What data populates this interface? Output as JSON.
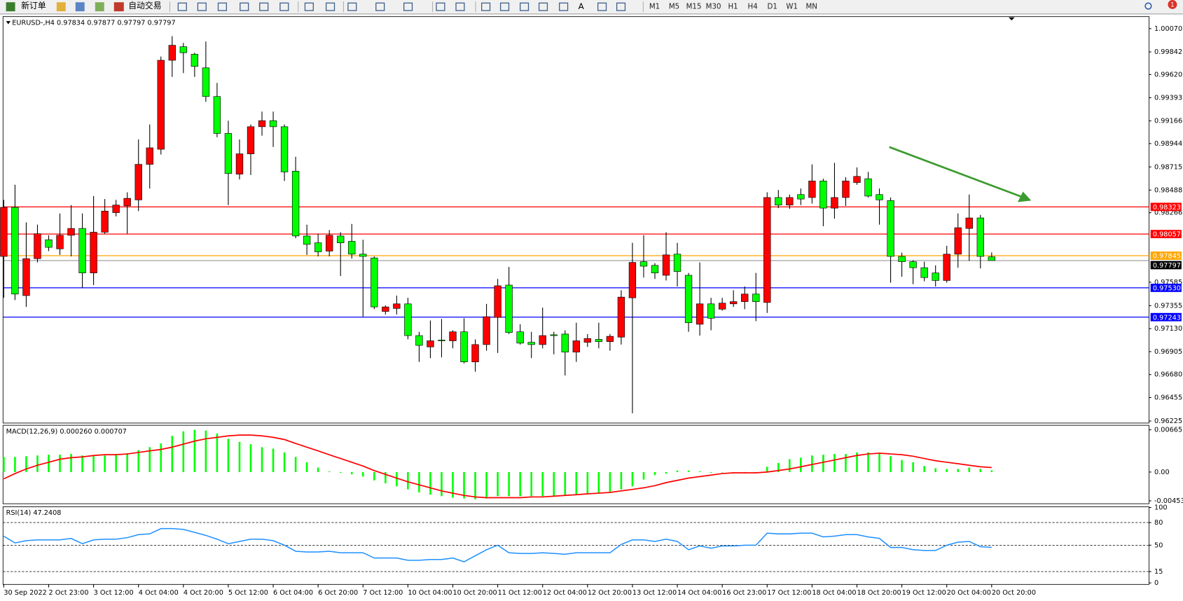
{
  "toolbar": {
    "new_order": "新订单",
    "auto_trading": "自动交易",
    "text_tool": "A",
    "timeframes": [
      "M1",
      "M5",
      "M15",
      "M30",
      "H1",
      "H4",
      "D1",
      "W1",
      "MN"
    ],
    "notification": 1
  },
  "chart_data": [
    {
      "type": "candlestick",
      "title": "EURUSD-,H4 0.97834 0.97877 0.97797 0.97797",
      "up_color": "#ff0000",
      "down_color": "#00ff00",
      "wick_color": "#000000",
      "categories": [
        "30 Sep 2022",
        null,
        null,
        null,
        "2 Oct 23:00",
        null,
        null,
        null,
        "3 Oct 12:00",
        null,
        null,
        null,
        "4 Oct 04:00",
        null,
        null,
        null,
        "4 Oct 20:00",
        null,
        null,
        null,
        "5 Oct 12:00",
        null,
        null,
        null,
        "6 Oct 04:00",
        null,
        null,
        null,
        "6 Oct 20:00",
        null,
        null,
        null,
        "7 Oct 12:00",
        null,
        null,
        null,
        "10 Oct 04:00",
        null,
        null,
        null,
        "10 Oct 20:00",
        null,
        null,
        null,
        "11 Oct 12:00",
        null,
        null,
        null,
        "12 Oct 04:00",
        null,
        null,
        null,
        "12 Oct 20:00",
        null,
        null,
        null,
        "13 Oct 12:00",
        null,
        null,
        null,
        "14 Oct 04:00",
        null,
        null,
        null,
        "16 Oct 23:00",
        null,
        null,
        null,
        "17 Oct 12:00",
        null,
        null,
        null,
        "18 Oct 04:00",
        null,
        null,
        null,
        "18 Oct 20:00",
        null,
        null,
        null,
        "19 Oct 12:00",
        null,
        null,
        null,
        "20 Oct 04:00",
        null,
        null,
        null,
        "20 Oct 20:00"
      ],
      "open": [
        0.97838,
        0.98319,
        0.97454,
        0.97816,
        0.98001,
        0.97912,
        0.98045,
        0.98112,
        0.97676,
        0.98075,
        0.98267,
        0.98333,
        0.98392,
        0.9874,
        0.98888,
        0.9976,
        0.99893,
        0.99819,
        0.99686,
        0.99405,
        0.99043,
        0.98644,
        0.98843,
        0.99109,
        0.99168,
        0.99109,
        0.98673,
        0.98038,
        0.97971,
        0.9789,
        0.98038,
        0.97986,
        0.9786,
        0.97823,
        0.97299,
        0.97328,
        0.97373,
        0.97062,
        0.96951,
        0.97018,
        0.97011,
        0.97099,
        0.96804,
        0.96974,
        0.9724,
        0.97557,
        0.97099,
        0.96996,
        0.96974,
        0.9707,
        0.97077,
        0.969,
        0.96996,
        0.97025,
        0.97003,
        0.97047,
        0.97432,
        0.97786,
        0.9775,
        0.97653,
        0.9786,
        0.97653,
        0.97173,
        0.97373,
        0.97321,
        0.97373,
        0.97395,
        0.97469,
        0.97387,
        0.98415,
        0.98341,
        0.98444,
        0.98415,
        0.98577,
        0.98311,
        0.98415,
        0.98562,
        0.98599,
        0.98444,
        0.98385,
        0.97838,
        0.97786,
        0.97727,
        0.97676,
        0.97602,
        0.9786,
        0.98112,
        0.98215,
        0.97834
      ],
      "high": [
        0.98392,
        0.9854,
        0.98171,
        0.98149,
        0.98045,
        0.98259,
        0.98341,
        0.98259,
        0.98429,
        0.984,
        0.98392,
        0.98466,
        0.98984,
        0.99131,
        0.99797,
        0.99996,
        0.9993,
        0.99834,
        0.99944,
        0.99538,
        0.99168,
        0.98984,
        0.99131,
        0.99257,
        0.99257,
        0.99131,
        0.98814,
        0.98149,
        0.9806,
        0.98097,
        0.98075,
        0.98156,
        0.98001,
        0.97838,
        0.97358,
        0.97454,
        0.97432,
        0.97099,
        0.9721,
        0.97225,
        0.97114,
        0.97232,
        0.97025,
        0.97373,
        0.97617,
        0.97735,
        0.97173,
        0.97099,
        0.97336,
        0.97099,
        0.97114,
        0.97188,
        0.97077,
        0.97188,
        0.97077,
        0.97506,
        0.97971,
        0.98045,
        0.97772,
        0.98075,
        0.97971,
        0.97676,
        0.97779,
        0.97432,
        0.97432,
        0.97506,
        0.97543,
        0.97676,
        0.98466,
        0.98489,
        0.98444,
        0.98503,
        0.9874,
        0.98599,
        0.98755,
        0.98614,
        0.9871,
        0.98666,
        0.98503,
        0.98415,
        0.97875,
        0.97801,
        0.97786,
        0.9775,
        0.97942,
        0.98259,
        0.98444,
        0.98245,
        0.97877
      ],
      "low": [
        0.97432,
        0.9741,
        0.97343,
        0.97779,
        0.9789,
        0.97853,
        0.97838,
        0.97528,
        0.97557,
        0.9806,
        0.9823,
        0.9806,
        0.98282,
        0.98503,
        0.98836,
        0.99597,
        0.99634,
        0.99597,
        0.99353,
        0.99006,
        0.98341,
        0.98592,
        0.98636,
        0.99021,
        0.9891,
        0.98577,
        0.98016,
        0.97853,
        0.97838,
        0.97838,
        0.97646,
        0.97816,
        0.97247,
        0.97321,
        0.97269,
        0.97269,
        0.97025,
        0.96804,
        0.96841,
        0.96848,
        0.96937,
        0.96789,
        0.96708,
        0.96914,
        0.96892,
        0.97077,
        0.96974,
        0.96841,
        0.96937,
        0.96878,
        0.96671,
        0.96804,
        0.96951,
        0.96937,
        0.96914,
        0.96974,
        0.96301,
        0.97631,
        0.97617,
        0.97602,
        0.97543,
        0.97099,
        0.97062,
        0.97114,
        0.97306,
        0.97343,
        0.97321,
        0.97203,
        0.97284,
        0.98311,
        0.98304,
        0.98341,
        0.98356,
        0.98134,
        0.98208,
        0.98333,
        0.9854,
        0.98415,
        0.98149,
        0.9758,
        0.97639,
        0.97565,
        0.97594,
        0.97543,
        0.9758,
        0.97727,
        0.97794,
        0.9772,
        0.97797
      ],
      "close": [
        0.98319,
        0.97469,
        0.97816,
        0.9806,
        0.97927,
        0.98045,
        0.98112,
        0.97676,
        0.98075,
        0.98282,
        0.98341,
        0.98407,
        0.9874,
        0.98902,
        0.9976,
        0.99907,
        0.99834,
        0.997,
        0.99405,
        0.99043,
        0.98651,
        0.98843,
        0.99109,
        0.99168,
        0.99109,
        0.98666,
        0.98038,
        0.97956,
        0.97883,
        0.98045,
        0.97971,
        0.9786,
        0.97838,
        0.97343,
        0.97343,
        0.97373,
        0.97062,
        0.96966,
        0.97011,
        0.97011,
        0.97099,
        0.96804,
        0.96974,
        0.97247,
        0.9755,
        0.97092,
        0.96988,
        0.96974,
        0.97062,
        0.97062,
        0.969,
        0.97011,
        0.97033,
        0.97003,
        0.97055,
        0.97439,
        0.97779,
        0.97742,
        0.97676,
        0.97853,
        0.9769,
        0.97188,
        0.97373,
        0.97232,
        0.9738,
        0.97395,
        0.97469,
        0.97395,
        0.98415,
        0.98341,
        0.98415,
        0.984,
        0.98577,
        0.98311,
        0.98415,
        0.98577,
        0.98622,
        0.98429,
        0.98392,
        0.97838,
        0.97786,
        0.97727,
        0.97631,
        0.97602,
        0.9786,
        0.98119,
        0.98215,
        0.97838,
        0.97797
      ],
      "ylim": [
        0.96205,
        1.00188
      ],
      "yticks": [
        {
          "value": 1.0007,
          "label": "1.00070"
        },
        0.99842,
        {
          "value": 0.9962,
          "label": "0.99620"
        },
        0.99393,
        0.99166,
        0.98944,
        0.98715,
        0.98488,
        0.98266,
        0.97585,
        0.97355,
        {
          "value": 0.9713,
          "label": "0.97130"
        },
        0.96905,
        {
          "value": 0.9668,
          "label": "0.96680"
        },
        0.96455,
        0.96225
      ],
      "levels": [
        {
          "value": 0.98323,
          "color": "#ff0000"
        },
        {
          "value": 0.98057,
          "color": "#ff0000"
        },
        {
          "value": 0.97845,
          "color": "#ffa500"
        },
        {
          "value": 0.9753,
          "label": "0.97530",
          "color": "#0000ff"
        },
        {
          "value": 0.97243,
          "color": "#0000ff"
        }
      ],
      "current_price": {
        "value": 0.97797,
        "color": "#000000"
      }
    },
    {
      "type": "macd",
      "title": "MACD(12,26,9) 0.000260 0.000707",
      "hist_color": "#00ff00",
      "signal_color": "#ff0000",
      "histogram": [
        0.00238,
        0.00238,
        0.00249,
        0.00261,
        0.00273,
        0.00273,
        0.00285,
        0.00261,
        0.00261,
        0.00261,
        0.00285,
        0.00297,
        0.00344,
        0.00392,
        0.00451,
        0.0057,
        0.00641,
        0.00665,
        0.00653,
        0.00606,
        0.00523,
        0.00475,
        0.00439,
        0.00392,
        0.00368,
        0.00309,
        0.00238,
        0.00154,
        0.00071,
        0.00012,
        -0.00012,
        -0.00036,
        -0.00071,
        -0.00131,
        -0.00178,
        -0.00226,
        -0.00273,
        -0.00321,
        -0.00356,
        -0.0038,
        -0.00404,
        -0.00416,
        -0.00428,
        -0.00416,
        -0.0038,
        -0.0038,
        -0.0038,
        -0.0038,
        -0.0038,
        -0.0038,
        -0.00368,
        -0.00356,
        -0.00344,
        -0.00333,
        -0.00309,
        -0.00273,
        -0.00226,
        -0.00119,
        -0.00048,
        -0.00024,
        0.00024,
        0.00024,
        0.00012,
        -0.00012,
        0,
        0,
        0,
        0,
        0.00083,
        0.00143,
        0.00202,
        0.00226,
        0.00261,
        0.00273,
        0.00285,
        0.00285,
        0.00309,
        0.00309,
        0.00285,
        0.00249,
        0.0019,
        0.00154,
        0.00095,
        0.00059,
        0.00048,
        0.00048,
        0.00071,
        0.00048,
        0.00026
      ],
      "signal": [
        -0.00107,
        -0.00024,
        0.00048,
        0.00107,
        0.00154,
        0.00202,
        0.00226,
        0.00238,
        0.00261,
        0.00273,
        0.00273,
        0.00285,
        0.00309,
        0.00333,
        0.00356,
        0.00392,
        0.00439,
        0.00487,
        0.00523,
        0.00546,
        0.0057,
        0.00582,
        0.00582,
        0.0057,
        0.00546,
        0.00511,
        0.00451,
        0.00392,
        0.00333,
        0.00273,
        0.00214,
        0.00154,
        0.00095,
        0.00024,
        -0.00036,
        -0.00095,
        -0.00154,
        -0.00202,
        -0.00249,
        -0.00297,
        -0.00333,
        -0.00368,
        -0.00392,
        -0.00404,
        -0.00404,
        -0.00404,
        -0.00404,
        -0.00392,
        -0.00392,
        -0.0038,
        -0.00368,
        -0.00356,
        -0.00344,
        -0.00333,
        -0.00321,
        -0.00297,
        -0.00273,
        -0.00249,
        -0.00214,
        -0.00166,
        -0.00131,
        -0.00095,
        -0.00071,
        -0.00048,
        -0.00024,
        -0.00012,
        -0.00012,
        -0.00012,
        0,
        0.00024,
        0.00048,
        0.00083,
        0.00119,
        0.00154,
        0.0019,
        0.00226,
        0.00261,
        0.00285,
        0.00297,
        0.00285,
        0.00273,
        0.00249,
        0.00214,
        0.00178,
        0.00154,
        0.00131,
        0.00107,
        0.00083,
        0.000707
      ],
      "ylim": [
        -0.00499,
        0.00736
      ],
      "yticks": [
        0.00665,
        {
          "value": 0,
          "label": "0.00"
        },
        -0.004535
      ]
    },
    {
      "type": "rsi",
      "title": "RSI(14) 47.2408",
      "color": "#1e90ff",
      "values": [
        62,
        53,
        56,
        57,
        57,
        57,
        59,
        52,
        57,
        58,
        58,
        60,
        64,
        65,
        72,
        72,
        71,
        67,
        63,
        58,
        52,
        55,
        58,
        58,
        56,
        50,
        42,
        41,
        41,
        42,
        40,
        40,
        40,
        33,
        33,
        33,
        30,
        30,
        31,
        31,
        33,
        28,
        36,
        44,
        50,
        40,
        39,
        39,
        40,
        39,
        38,
        40,
        40,
        40,
        40,
        51,
        57,
        57,
        55,
        58,
        55,
        44,
        49,
        46,
        49,
        49,
        50,
        50,
        66,
        65,
        65,
        66,
        66,
        61,
        62,
        64,
        64,
        61,
        59,
        47,
        47,
        44,
        43,
        43,
        50,
        54,
        55,
        48,
        47.2408
      ],
      "ylim": [
        -2,
        101
      ],
      "yticks": [
        100,
        80,
        50,
        15,
        0
      ],
      "levels": [
        80,
        50,
        15
      ]
    }
  ]
}
